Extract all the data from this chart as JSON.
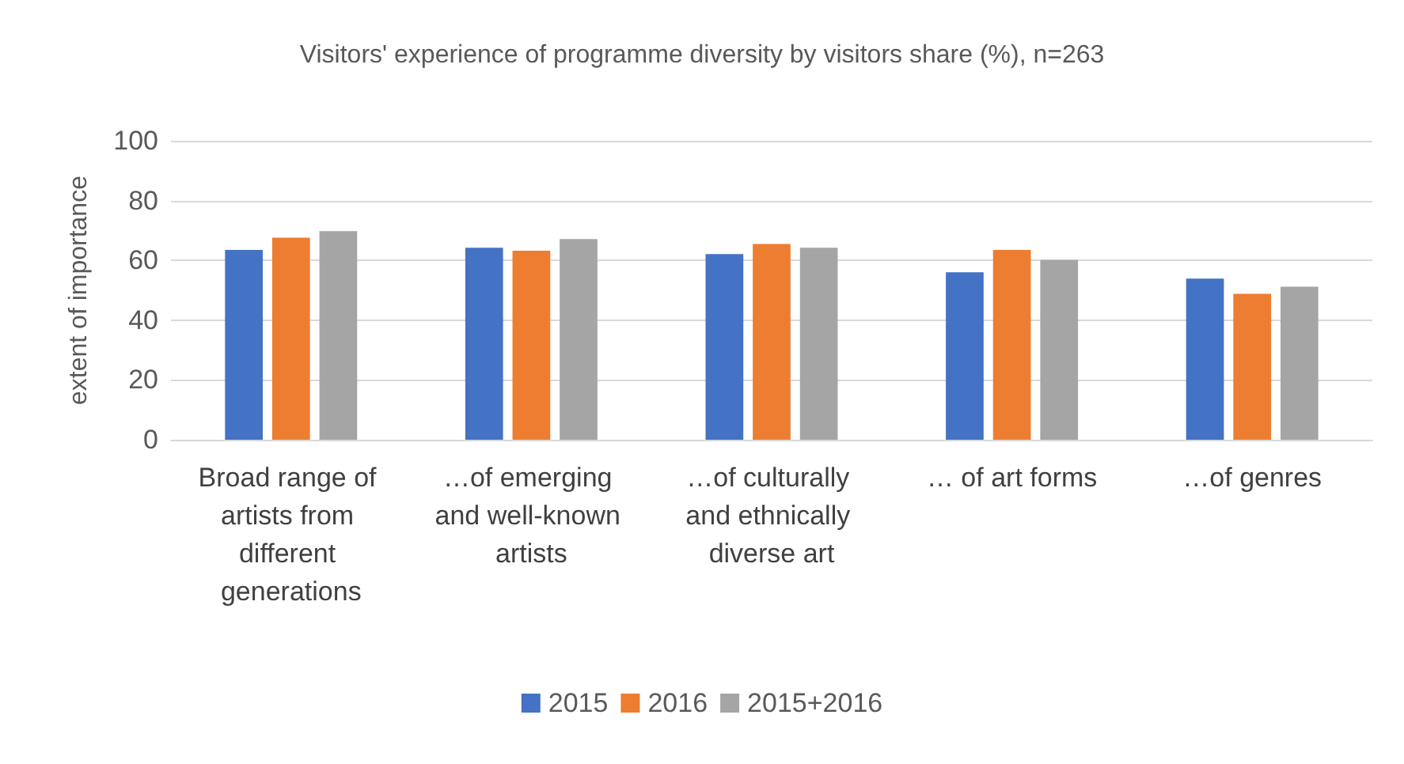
{
  "chart_data": {
    "type": "bar",
    "title": "Visitors' experience of programme diversity by visitors share (%), n=263",
    "ylabel": "extent of importance",
    "categories": [
      "Broad range of artists from different generations",
      "…of emerging and well-known artists",
      "…of culturally and ethnically diverse art",
      "… of art forms",
      "…of genres"
    ],
    "series": [
      {
        "name": "2015",
        "color": "#4472c4",
        "values": [
          63.5,
          64.2,
          62.1,
          56.0,
          53.9
        ]
      },
      {
        "name": "2016",
        "color": "#ed7d31",
        "values": [
          67.6,
          63.2,
          65.5,
          63.5,
          48.8
        ]
      },
      {
        "name": "2015+2016",
        "color": "#a5a5a5",
        "values": [
          69.8,
          67.1,
          64.2,
          60.1,
          51.2
        ]
      }
    ],
    "ylim": [
      0,
      100
    ],
    "yticks": [
      0,
      20,
      40,
      60,
      80,
      100
    ],
    "grid": "y",
    "legend": "bottom"
  }
}
